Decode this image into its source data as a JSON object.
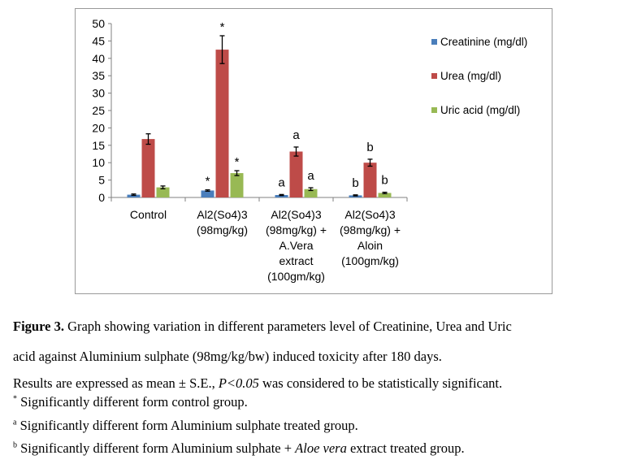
{
  "chart_data": {
    "type": "bar",
    "categories": [
      [
        "Control"
      ],
      [
        "Al2(So4)3",
        "(98mg/kg)"
      ],
      [
        "Al2(So4)3",
        "(98mg/kg) +",
        "A.Vera",
        "extract",
        "(100gm/kg)"
      ],
      [
        "Al2(So4)3",
        "(98mg/kg) +",
        "Aloin",
        "(100gm/kg)"
      ]
    ],
    "series": [
      {
        "name": "Creatinine (mg/dl)",
        "color": "#4a7ebb",
        "values": [
          0.8,
          2.0,
          0.7,
          0.6
        ],
        "errors": [
          0.2,
          0.2,
          0.15,
          0.15
        ],
        "marks": [
          "",
          "*",
          "a",
          "b"
        ]
      },
      {
        "name": "Urea (mg/dl)",
        "color": "#be4b48",
        "values": [
          16.8,
          42.5,
          13.2,
          10.0
        ],
        "errors": [
          1.5,
          4.0,
          1.3,
          1.0
        ],
        "marks": [
          "",
          "*",
          "a",
          "b"
        ]
      },
      {
        "name": "Uric acid (mg/dl)",
        "color": "#98b954",
        "values": [
          2.9,
          7.0,
          2.4,
          1.3
        ],
        "errors": [
          0.4,
          0.7,
          0.4,
          0.2
        ],
        "marks": [
          "",
          "*",
          "a",
          "b"
        ]
      }
    ],
    "yticks": [
      0,
      5,
      10,
      15,
      20,
      25,
      30,
      35,
      40,
      45,
      50
    ],
    "ylim": [
      0,
      50
    ],
    "grid": false,
    "legend_position": "right"
  },
  "caption": {
    "label": "Figure 3.",
    "line1": " Graph showing variation in different parameters level of Creatinine, Urea and Uric",
    "line2": "acid against Aluminium sulphate (98mg/kg/bw) induced toxicity after 180 days."
  },
  "notes": {
    "results_prefix": "Results are expressed as mean ± S.E., ",
    "results_p": "P<0.05",
    "results_suffix": " was considered to be statistically significant.",
    "star_mark": "*",
    "star_text": " Significantly different form control group.",
    "a_mark": "a",
    "a_text": " Significantly different form Aluminium sulphate treated group.",
    "b_mark": "b",
    "b_text": " Significantly different form Aluminium sulphate + ",
    "b_ital": "Aloe vera",
    "b_tail": " extract treated group."
  }
}
